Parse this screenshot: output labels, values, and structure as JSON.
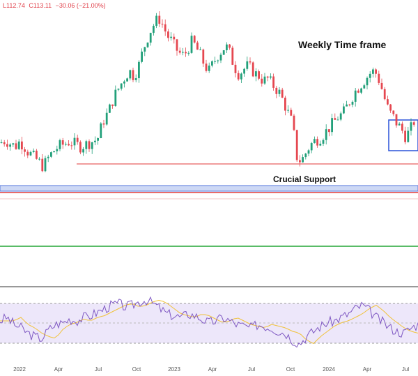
{
  "chart_data": {
    "type": "candlestick",
    "ohlc_header": {
      "partial_label": "L",
      "low": "L112.74",
      "close": "C113.11",
      "change": "−30.06 (−21.00%)"
    },
    "annotations": {
      "title": "Weekly Time frame",
      "support": "Crucial Support"
    },
    "x_ticks": [
      "2022",
      "Apr",
      "Jul",
      "Oct",
      "2023",
      "Apr",
      "Jul",
      "Oct",
      "2024",
      "Apr",
      "Jul"
    ],
    "price_path": [
      [
        0,
        95
      ],
      [
        8,
        97
      ],
      [
        16,
        94
      ],
      [
        22,
        92
      ],
      [
        28,
        96
      ],
      [
        34,
        93
      ],
      [
        40,
        88
      ],
      [
        48,
        84
      ],
      [
        56,
        80
      ],
      [
        62,
        76
      ],
      [
        68,
        82
      ],
      [
        76,
        88
      ],
      [
        84,
        92
      ],
      [
        92,
        94
      ],
      [
        100,
        96
      ],
      [
        108,
        94
      ],
      [
        116,
        92
      ],
      [
        124,
        94
      ],
      [
        132,
        96
      ],
      [
        140,
        98
      ],
      [
        148,
        112
      ],
      [
        156,
        120
      ],
      [
        164,
        132
      ],
      [
        172,
        140
      ],
      [
        180,
        148
      ],
      [
        186,
        152
      ],
      [
        192,
        148
      ],
      [
        198,
        154
      ],
      [
        204,
        166
      ],
      [
        210,
        176
      ],
      [
        216,
        184
      ],
      [
        222,
        190
      ],
      [
        228,
        194
      ],
      [
        234,
        188
      ],
      [
        240,
        180
      ],
      [
        246,
        176
      ],
      [
        252,
        170
      ],
      [
        258,
        166
      ],
      [
        264,
        164
      ],
      [
        270,
        170
      ],
      [
        276,
        176
      ],
      [
        282,
        170
      ],
      [
        288,
        164
      ],
      [
        294,
        156
      ],
      [
        300,
        152
      ],
      [
        306,
        158
      ],
      [
        312,
        164
      ],
      [
        318,
        168
      ],
      [
        324,
        172
      ],
      [
        330,
        166
      ],
      [
        336,
        156
      ],
      [
        342,
        150
      ],
      [
        348,
        152
      ],
      [
        354,
        156
      ],
      [
        360,
        154
      ],
      [
        366,
        150
      ],
      [
        372,
        148
      ],
      [
        378,
        144
      ],
      [
        384,
        146
      ],
      [
        390,
        142
      ],
      [
        396,
        138
      ],
      [
        402,
        134
      ],
      [
        408,
        126
      ],
      [
        414,
        118
      ],
      [
        420,
        110
      ],
      [
        426,
        84
      ],
      [
        432,
        80
      ],
      [
        438,
        86
      ],
      [
        444,
        92
      ],
      [
        450,
        96
      ],
      [
        456,
        98
      ],
      [
        462,
        100
      ],
      [
        468,
        104
      ],
      [
        474,
        108
      ],
      [
        480,
        112
      ],
      [
        486,
        116
      ],
      [
        492,
        118
      ],
      [
        498,
        124
      ],
      [
        504,
        130
      ],
      [
        510,
        136
      ],
      [
        516,
        140
      ],
      [
        522,
        144
      ],
      [
        528,
        148
      ],
      [
        534,
        152
      ],
      [
        540,
        150
      ],
      [
        546,
        142
      ],
      [
        552,
        130
      ],
      [
        558,
        120
      ],
      [
        564,
        116
      ],
      [
        570,
        110
      ],
      [
        576,
        106
      ],
      [
        582,
        100
      ],
      [
        588,
        104
      ],
      [
        594,
        112
      ],
      [
        600,
        114
      ]
    ],
    "rsi_path": [
      [
        0,
        52
      ],
      [
        10,
        56
      ],
      [
        20,
        48
      ],
      [
        30,
        44
      ],
      [
        40,
        38
      ],
      [
        50,
        34
      ],
      [
        60,
        32
      ],
      [
        70,
        42
      ],
      [
        80,
        48
      ],
      [
        90,
        50
      ],
      [
        100,
        54
      ],
      [
        110,
        52
      ],
      [
        120,
        56
      ],
      [
        130,
        58
      ],
      [
        140,
        62
      ],
      [
        150,
        66
      ],
      [
        160,
        70
      ],
      [
        170,
        72
      ],
      [
        180,
        68
      ],
      [
        190,
        70
      ],
      [
        200,
        74
      ],
      [
        210,
        76
      ],
      [
        220,
        72
      ],
      [
        230,
        66
      ],
      [
        240,
        60
      ],
      [
        250,
        58
      ],
      [
        260,
        56
      ],
      [
        270,
        60
      ],
      [
        280,
        58
      ],
      [
        290,
        54
      ],
      [
        300,
        50
      ],
      [
        310,
        52
      ],
      [
        320,
        56
      ],
      [
        330,
        52
      ],
      [
        340,
        48
      ],
      [
        350,
        46
      ],
      [
        360,
        44
      ],
      [
        370,
        48
      ],
      [
        380,
        46
      ],
      [
        390,
        44
      ],
      [
        400,
        40
      ],
      [
        410,
        38
      ],
      [
        420,
        30
      ],
      [
        430,
        26
      ],
      [
        440,
        34
      ],
      [
        450,
        40
      ],
      [
        460,
        46
      ],
      [
        470,
        50
      ],
      [
        480,
        52
      ],
      [
        490,
        56
      ],
      [
        500,
        60
      ],
      [
        510,
        66
      ],
      [
        520,
        70
      ],
      [
        530,
        64
      ],
      [
        540,
        56
      ],
      [
        550,
        50
      ],
      [
        560,
        44
      ],
      [
        570,
        40
      ],
      [
        580,
        38
      ],
      [
        590,
        44
      ],
      [
        600,
        48
      ]
    ]
  }
}
